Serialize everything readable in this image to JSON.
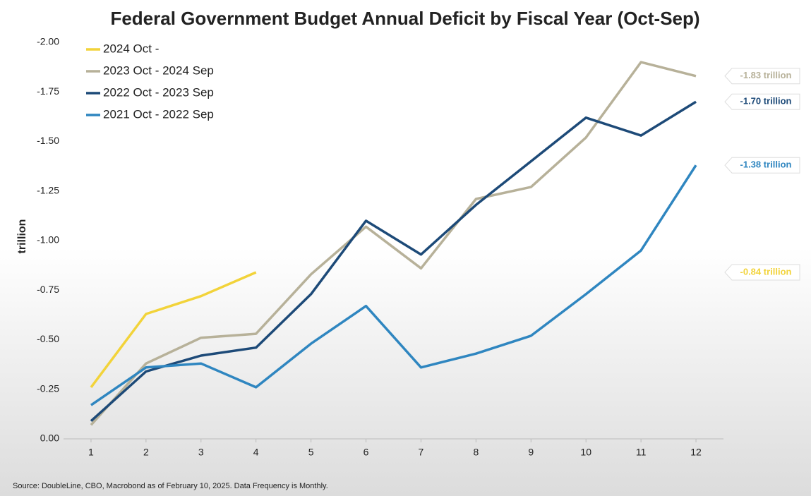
{
  "chart_data": {
    "type": "line",
    "title": "Federal Government Budget Annual Deficit by Fiscal Year (Oct-Sep)",
    "y_label": "trillion",
    "source": "Source: DoubleLine, CBO, Macrobond as of February 10, 2025. Data Frequency is Monthly.",
    "x": [
      1,
      2,
      3,
      4,
      5,
      6,
      7,
      8,
      9,
      10,
      11,
      12
    ],
    "xlim": [
      0.5,
      12.5
    ],
    "xticks": [
      1,
      2,
      3,
      4,
      5,
      6,
      7,
      8,
      9,
      10,
      11,
      12
    ],
    "ylim": [
      0,
      -2
    ],
    "yticks": [
      {
        "value": 0,
        "label": "0.00"
      },
      -0.25,
      {
        "value": -0.5,
        "label": "-0.50"
      },
      -0.75,
      {
        "value": -1,
        "label": "-1.00"
      },
      -1.25,
      {
        "value": -1.5,
        "label": "-1.50"
      },
      -1.75,
      {
        "value": -2,
        "label": "-2.00"
      }
    ],
    "grid": false,
    "legend": "top-left",
    "series": [
      {
        "name": "2024 Oct -",
        "color": "#f2d33a",
        "values": [
          -0.26,
          -0.63,
          -0.72,
          -0.84,
          null,
          null,
          null,
          null,
          null,
          null,
          null,
          null
        ],
        "end_label": "-0.84 trillion"
      },
      {
        "name": "2023 Oct - 2024 Sep",
        "color": "#b7b199",
        "values": [
          -0.07,
          -0.38,
          -0.51,
          -0.53,
          -0.83,
          -1.07,
          -0.86,
          -1.21,
          -1.27,
          -1.52,
          -1.9,
          -1.83
        ],
        "end_label": "-1.83 trillion"
      },
      {
        "name": "2022 Oct - 2023 Sep",
        "color": "#1d4a78",
        "values": [
          -0.09,
          -0.34,
          -0.42,
          -0.46,
          -0.73,
          -1.1,
          -0.93,
          -1.18,
          -1.4,
          -1.62,
          -1.53,
          -1.7
        ],
        "end_label": "-1.70 trillion"
      },
      {
        "name": "2021 Oct - 2022 Sep",
        "color": "#2f86c0",
        "values": [
          -0.17,
          -0.36,
          -0.38,
          -0.26,
          -0.48,
          -0.67,
          -0.36,
          -0.43,
          -0.52,
          -0.73,
          -0.95,
          -1.38
        ],
        "end_label": "-1.38 trillion"
      }
    ]
  }
}
